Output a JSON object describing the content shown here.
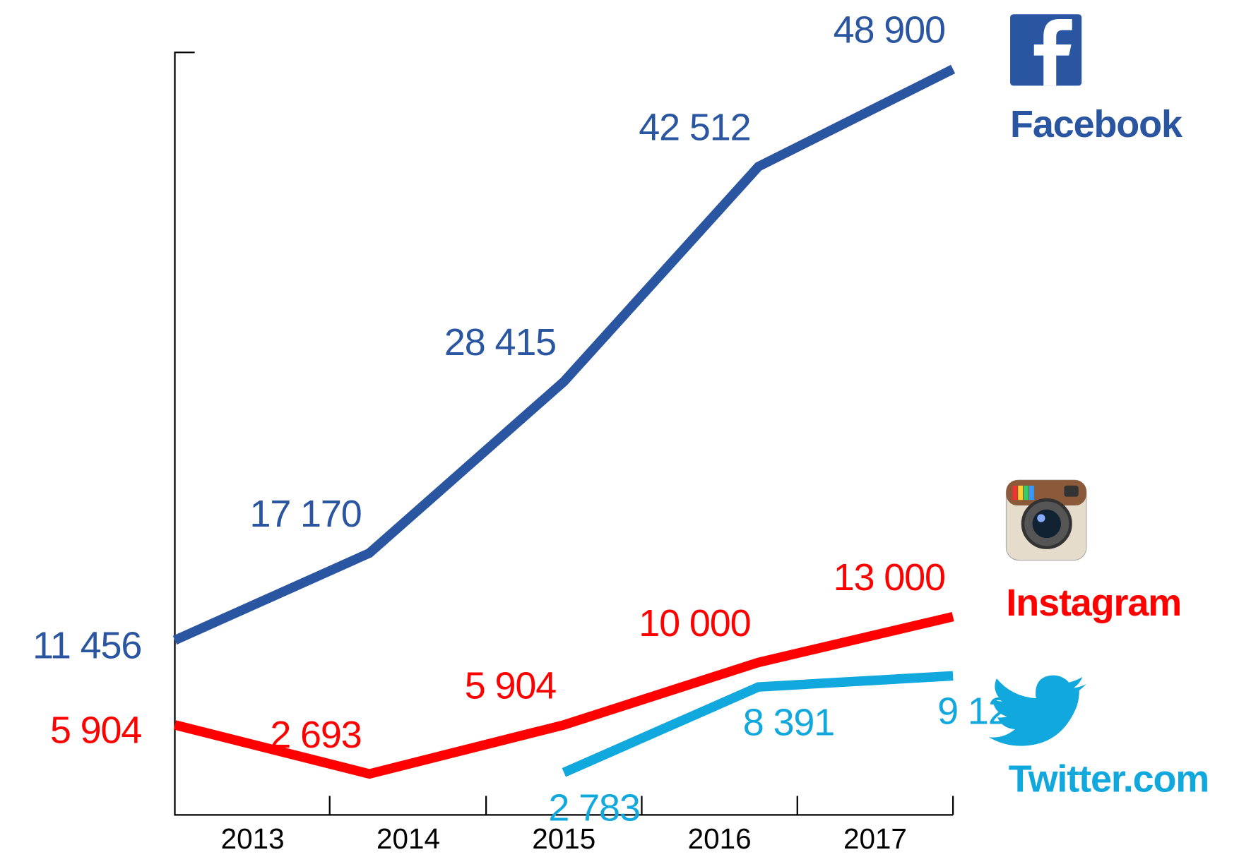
{
  "chart_data": {
    "type": "line",
    "categories": [
      "2013",
      "2014",
      "2015",
      "2016",
      "2017"
    ],
    "ylim": [
      0,
      50000
    ],
    "series": [
      {
        "name": "Facebook",
        "color": "#2a55a0",
        "values": [
          11456,
          17170,
          28415,
          42512,
          48900
        ],
        "value_labels": [
          "11 456",
          "17 170",
          "28 415",
          "42 512",
          "48 900"
        ]
      },
      {
        "name": "Instagram",
        "color": "#ff0000",
        "values": [
          5904,
          2693,
          5904,
          10000,
          13000
        ],
        "value_labels": [
          "5 904",
          "2 693",
          "5 904",
          "10 000",
          "13 000"
        ]
      },
      {
        "name": "Twitter.com",
        "color": "#10a8dd",
        "values": [
          null,
          null,
          2783,
          8391,
          9120
        ],
        "value_labels": [
          null,
          null,
          "2 783",
          "8 391",
          "9 120"
        ]
      }
    ]
  }
}
